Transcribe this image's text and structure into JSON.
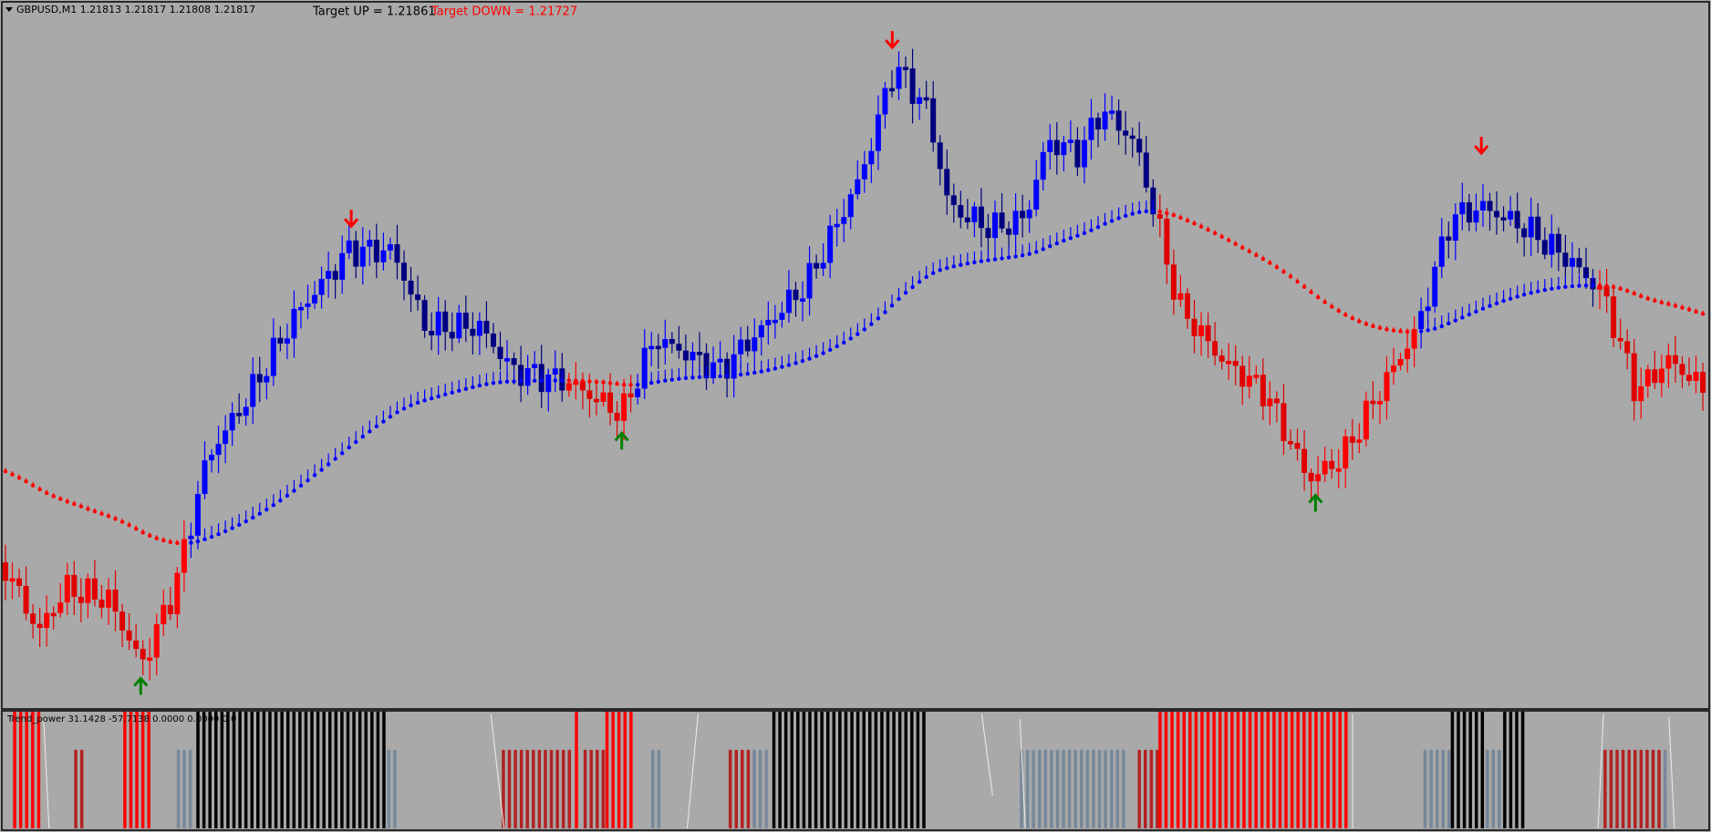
{
  "header": {
    "symbol_info": "GBPUSD,M1  1.21813 1.21817 1.21808 1.21817",
    "target_up": "Target UP = 1.21861",
    "target_down": "Target DOWN = 1.21727"
  },
  "indicator": {
    "label": "Trend_power 31.1428 -57.7138 0.0000 0.0000 0.0"
  }
}
